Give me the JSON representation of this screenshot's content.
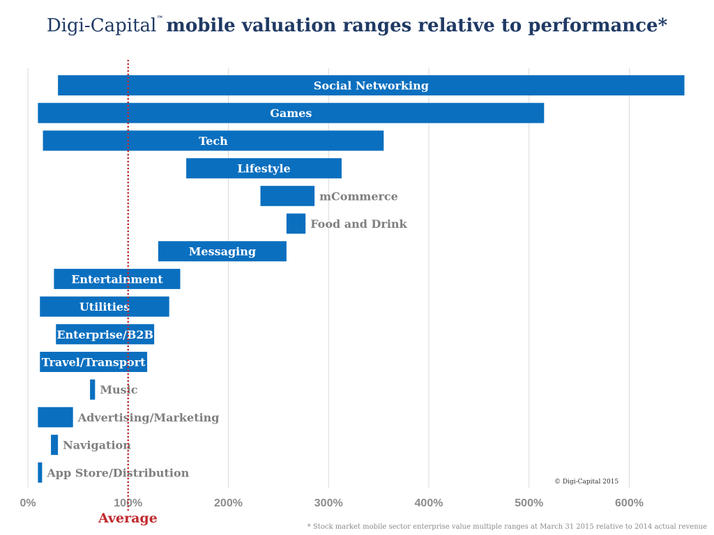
{
  "title": {
    "brand": "Digi-Capital",
    "trademark": "™",
    "text": "mobile valuation ranges relative to performance*"
  },
  "chart_data": {
    "type": "bar",
    "orientation": "horizontal-range",
    "title": "mobile valuation ranges relative to performance*",
    "xlim": [
      0,
      660
    ],
    "x_ticks": [
      "0%",
      "100%",
      "200%",
      "300%",
      "400%",
      "500%",
      "600%"
    ],
    "x_tick_values": [
      0,
      100,
      200,
      300,
      400,
      500,
      600
    ],
    "grid": true,
    "reference_line": {
      "value": 100,
      "label": "Average",
      "color": "#c0282d",
      "style": "dotted"
    },
    "bar_color": "#0a6fbf",
    "categories": [
      {
        "name": "Social Networking",
        "min": 30,
        "max": 655,
        "label_inside": true
      },
      {
        "name": "Games",
        "min": 10,
        "max": 515,
        "label_inside": true
      },
      {
        "name": "Tech",
        "min": 15,
        "max": 355,
        "label_inside": true
      },
      {
        "name": "Lifestyle",
        "min": 158,
        "max": 313,
        "label_inside": true
      },
      {
        "name": "mCommerce",
        "min": 232,
        "max": 286,
        "label_inside": false
      },
      {
        "name": "Food and Drink",
        "min": 258,
        "max": 277,
        "label_inside": false
      },
      {
        "name": "Messaging",
        "min": 130,
        "max": 258,
        "label_inside": true
      },
      {
        "name": "Entertainment",
        "min": 26,
        "max": 152,
        "label_inside": true
      },
      {
        "name": "Utilities",
        "min": 12,
        "max": 141,
        "label_inside": true
      },
      {
        "name": "Enterprise/B2B",
        "min": 28,
        "max": 126,
        "label_inside": true
      },
      {
        "name": "Travel/Transport",
        "min": 12,
        "max": 119,
        "label_inside": true
      },
      {
        "name": "Music",
        "min": 62,
        "max": 67,
        "label_inside": false
      },
      {
        "name": "Advertising/Marketing",
        "min": 10,
        "max": 45,
        "label_inside": false
      },
      {
        "name": "Navigation",
        "min": 23,
        "max": 30,
        "label_inside": false
      },
      {
        "name": "App Store/Distribution",
        "min": 10,
        "max": 14,
        "label_inside": false
      }
    ]
  },
  "copyright": "© Digi-Capital 2015",
  "footnote": "* Stock market mobile sector enterprise value multiple ranges at March 31 2015 relative to 2014 actual revenue"
}
